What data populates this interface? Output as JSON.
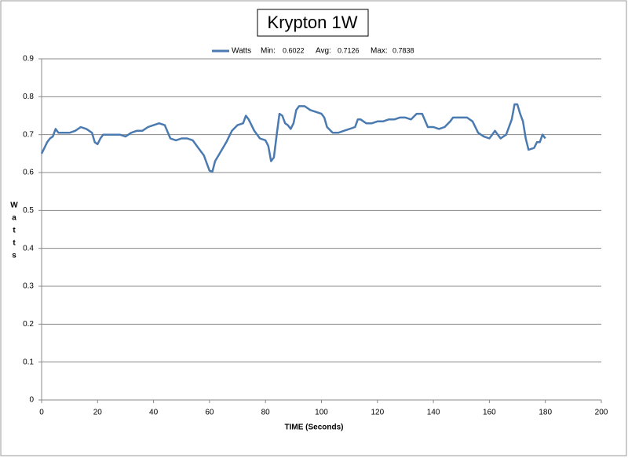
{
  "chart_data": {
    "type": "line",
    "title": "Krypton 1W",
    "xlabel": "TIME (Seconds)",
    "ylabel": "Watts",
    "legend_stats": [
      "Min:",
      "0.6022",
      "Avg:",
      "0.7126",
      "Max:",
      "0.7838"
    ],
    "x": [
      0,
      1,
      2,
      3,
      4,
      5,
      6,
      8,
      10,
      12,
      14,
      16,
      18,
      19,
      20,
      21,
      22,
      24,
      26,
      28,
      30,
      32,
      34,
      36,
      38,
      40,
      42,
      44,
      46,
      48,
      50,
      52,
      54,
      56,
      58,
      59,
      60,
      61,
      62,
      64,
      66,
      68,
      70,
      72,
      73,
      74,
      76,
      78,
      80,
      81,
      82,
      83,
      84,
      85,
      86,
      87,
      88,
      89,
      90,
      91,
      92,
      94,
      96,
      98,
      100,
      101,
      102,
      104,
      106,
      108,
      110,
      112,
      113,
      114,
      116,
      118,
      120,
      122,
      124,
      126,
      128,
      130,
      132,
      134,
      136,
      138,
      140,
      142,
      144,
      146,
      147,
      148,
      150,
      152,
      154,
      156,
      158,
      160,
      161,
      162,
      163,
      164,
      166,
      168,
      169,
      170,
      171,
      172,
      173,
      174,
      176,
      177,
      178,
      179,
      180
    ],
    "series": [
      {
        "name": "Watts",
        "color": "#4a7ab0",
        "values": [
          0.65,
          0.665,
          0.68,
          0.69,
          0.695,
          0.715,
          0.705,
          0.705,
          0.705,
          0.71,
          0.72,
          0.715,
          0.705,
          0.68,
          0.675,
          0.69,
          0.7,
          0.7,
          0.7,
          0.7,
          0.695,
          0.705,
          0.71,
          0.71,
          0.72,
          0.725,
          0.73,
          0.725,
          0.69,
          0.685,
          0.69,
          0.69,
          0.685,
          0.665,
          0.645,
          0.625,
          0.605,
          0.602,
          0.63,
          0.655,
          0.68,
          0.71,
          0.725,
          0.73,
          0.75,
          0.74,
          0.71,
          0.69,
          0.685,
          0.67,
          0.63,
          0.64,
          0.7,
          0.755,
          0.75,
          0.73,
          0.725,
          0.715,
          0.73,
          0.765,
          0.775,
          0.775,
          0.765,
          0.76,
          0.755,
          0.745,
          0.72,
          0.705,
          0.705,
          0.71,
          0.715,
          0.72,
          0.74,
          0.74,
          0.73,
          0.73,
          0.735,
          0.735,
          0.74,
          0.74,
          0.745,
          0.745,
          0.74,
          0.755,
          0.755,
          0.72,
          0.72,
          0.715,
          0.72,
          0.735,
          0.745,
          0.745,
          0.745,
          0.745,
          0.735,
          0.705,
          0.695,
          0.69,
          0.7,
          0.71,
          0.7,
          0.69,
          0.7,
          0.74,
          0.78,
          0.78,
          0.755,
          0.735,
          0.69,
          0.66,
          0.665,
          0.68,
          0.68,
          0.7,
          0.69
        ]
      }
    ],
    "xlim": [
      0,
      200
    ],
    "xticks": [
      0,
      20,
      40,
      60,
      80,
      100,
      120,
      140,
      160,
      180,
      200
    ],
    "ylim": [
      0,
      0.9
    ],
    "yticks": [
      0,
      0.1,
      0.2,
      0.3,
      0.4,
      0.5,
      0.6,
      0.7,
      0.8,
      0.9
    ],
    "grid": true
  }
}
